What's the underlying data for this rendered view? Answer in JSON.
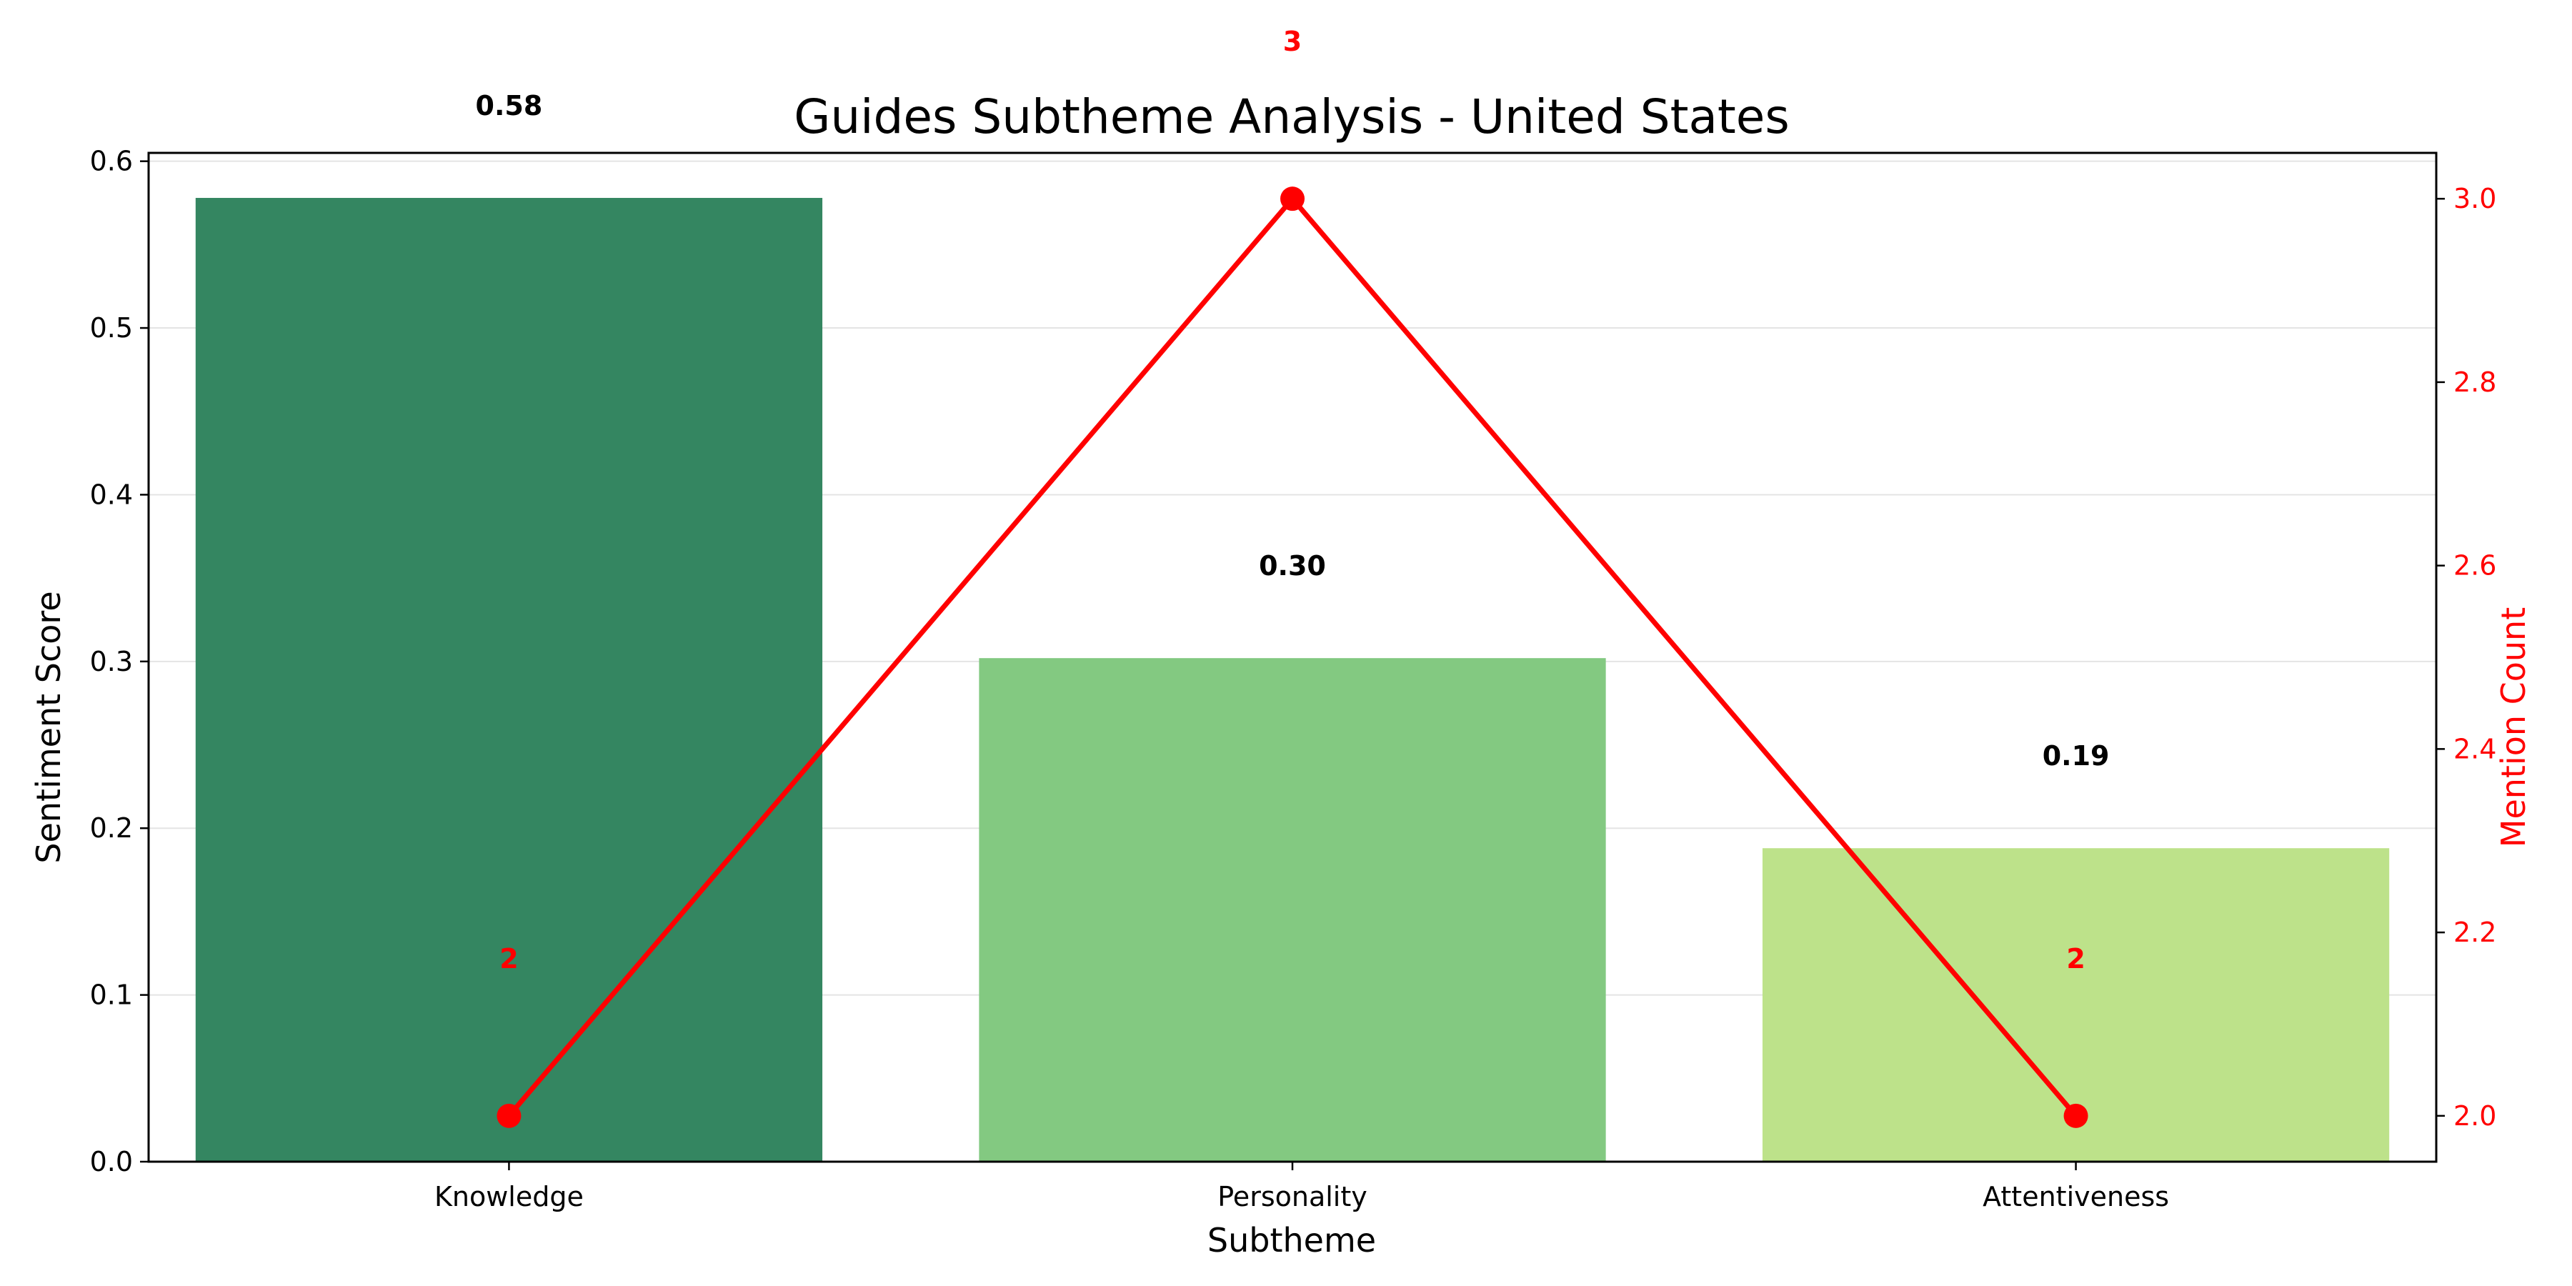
{
  "chart_data": {
    "type": "bar",
    "title": "Guides Subtheme Analysis - United States",
    "xlabel": "Subtheme",
    "ylabel": "Sentiment Score",
    "y2label": "Mention Count",
    "categories": [
      "Knowledge",
      "Personality",
      "Attentiveness"
    ],
    "series": [
      {
        "type": "bar",
        "axis": "left",
        "values": [
          0.578,
          0.302,
          0.188
        ],
        "value_labels": [
          "0.58",
          "0.30",
          "0.19"
        ],
        "colors": [
          "#348661",
          "#83c981",
          "#bde28a"
        ]
      },
      {
        "type": "line",
        "axis": "right",
        "values": [
          2,
          3,
          2
        ],
        "value_labels": [
          "2",
          "3",
          "2"
        ],
        "color": "#ff0000"
      }
    ],
    "ylim": [
      0,
      0.605
    ],
    "y2lim": [
      1.95,
      3.05
    ],
    "yticks": [
      "0.0",
      "0.1",
      "0.2",
      "0.3",
      "0.4",
      "0.5",
      "0.6"
    ],
    "y2ticks": [
      "2.0",
      "2.2",
      "2.4",
      "2.6",
      "2.8",
      "3.0"
    ],
    "grid": "horizontal",
    "legend": "none",
    "y2_color": "#ff0000"
  }
}
